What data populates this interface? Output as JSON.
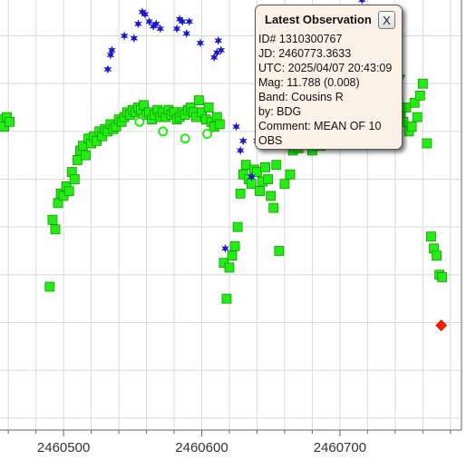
{
  "chart_data": {
    "type": "scatter",
    "x_ticks": [
      2460500,
      2460600,
      2460700
    ],
    "xlim": [
      2460454,
      2460788
    ],
    "ylim": [
      13.15,
      11.35
    ],
    "y_inverted": true,
    "grid": true,
    "colors": {
      "green_square": "#22ee11",
      "green_square_edge": "#119900",
      "blue_star": "#1a1ad0",
      "red_diamond": "#ff1a00",
      "grid": "#d9d9d9"
    },
    "series": [
      {
        "marker": "green-square",
        "points": [
          [
            2460455,
            12.65
          ],
          [
            2460457,
            12.62
          ],
          [
            2460459,
            12.66
          ],
          [
            2460461,
            12.64
          ],
          [
            2460490,
            11.95
          ],
          [
            2460492,
            12.23
          ],
          [
            2460494,
            12.19
          ],
          [
            2460496,
            12.3
          ],
          [
            2460498,
            12.34
          ],
          [
            2460500,
            12.33
          ],
          [
            2460502,
            12.37
          ],
          [
            2460504,
            12.35
          ],
          [
            2460506,
            12.43
          ],
          [
            2460508,
            12.4
          ],
          [
            2460510,
            12.48
          ],
          [
            2460512,
            12.52
          ],
          [
            2460514,
            12.54
          ],
          [
            2460516,
            12.5
          ],
          [
            2460518,
            12.57
          ],
          [
            2460520,
            12.55
          ],
          [
            2460522,
            12.58
          ],
          [
            2460524,
            12.56
          ],
          [
            2460526,
            12.6
          ],
          [
            2460528,
            12.58
          ],
          [
            2460530,
            12.61
          ],
          [
            2460532,
            12.6
          ],
          [
            2460534,
            12.63
          ],
          [
            2460536,
            12.61
          ],
          [
            2460538,
            12.62
          ],
          [
            2460540,
            12.65
          ],
          [
            2460542,
            12.64
          ],
          [
            2460544,
            12.66
          ],
          [
            2460546,
            12.68
          ],
          [
            2460548,
            12.67
          ],
          [
            2460550,
            12.69
          ],
          [
            2460552,
            12.68
          ],
          [
            2460554,
            12.7
          ],
          [
            2460556,
            12.69
          ],
          [
            2460558,
            12.71
          ],
          [
            2460560,
            12.67
          ],
          [
            2460562,
            12.68
          ],
          [
            2460564,
            12.65
          ],
          [
            2460566,
            12.67
          ],
          [
            2460568,
            12.69
          ],
          [
            2460570,
            12.66
          ],
          [
            2460572,
            12.68
          ],
          [
            2460574,
            12.66
          ],
          [
            2460576,
            12.69
          ],
          [
            2460578,
            12.67
          ],
          [
            2460580,
            12.68
          ],
          [
            2460582,
            12.65
          ],
          [
            2460584,
            12.66
          ],
          [
            2460586,
            12.68
          ],
          [
            2460588,
            12.67
          ],
          [
            2460590,
            12.69
          ],
          [
            2460592,
            12.7
          ],
          [
            2460594,
            12.68
          ],
          [
            2460596,
            12.66
          ],
          [
            2460598,
            12.73
          ],
          [
            2460600,
            12.68
          ],
          [
            2460603,
            12.65
          ],
          [
            2460605,
            12.7
          ],
          [
            2460607,
            12.64
          ],
          [
            2460609,
            12.62
          ],
          [
            2460611,
            12.66
          ],
          [
            2460613,
            12.63
          ],
          [
            2460616,
            12.05
          ],
          [
            2460618,
            11.9
          ],
          [
            2460620,
            12.03
          ],
          [
            2460622,
            12.08
          ],
          [
            2460624,
            12.12
          ],
          [
            2460626,
            12.2
          ],
          [
            2460628,
            12.34
          ],
          [
            2460630,
            12.42
          ],
          [
            2460632,
            12.46
          ],
          [
            2460634,
            12.4
          ],
          [
            2460636,
            12.38
          ],
          [
            2460638,
            12.44
          ],
          [
            2460640,
            12.43
          ],
          [
            2460642,
            12.35
          ],
          [
            2460644,
            12.39
          ],
          [
            2460646,
            12.45
          ],
          [
            2460648,
            12.4
          ],
          [
            2460650,
            12.33
          ],
          [
            2460652,
            12.28
          ],
          [
            2460654,
            12.46
          ],
          [
            2460656,
            12.1
          ],
          [
            2460660,
            12.38
          ],
          [
            2460664,
            12.42
          ],
          [
            2460666,
            12.52
          ],
          [
            2460668,
            12.56
          ],
          [
            2460670,
            12.53
          ],
          [
            2460672,
            12.58
          ],
          [
            2460674,
            12.55
          ],
          [
            2460676,
            12.6
          ],
          [
            2460678,
            12.57
          ],
          [
            2460680,
            12.52
          ],
          [
            2460682,
            12.6
          ],
          [
            2460684,
            12.58
          ],
          [
            2460686,
            12.54
          ],
          [
            2460688,
            12.62
          ],
          [
            2460690,
            12.63
          ],
          [
            2460692,
            12.61
          ],
          [
            2460694,
            12.64
          ],
          [
            2460696,
            12.66
          ],
          [
            2460698,
            12.63
          ],
          [
            2460700,
            12.65
          ],
          [
            2460702,
            12.68
          ],
          [
            2460704,
            12.66
          ],
          [
            2460706,
            12.7
          ],
          [
            2460708,
            12.67
          ],
          [
            2460710,
            12.69
          ],
          [
            2460712,
            12.66
          ],
          [
            2460714,
            12.68
          ],
          [
            2460716,
            12.7
          ],
          [
            2460718,
            12.65
          ],
          [
            2460720,
            12.69
          ],
          [
            2460722,
            12.72
          ],
          [
            2460724,
            12.68
          ],
          [
            2460726,
            12.7
          ],
          [
            2460728,
            12.66
          ],
          [
            2460730,
            12.7
          ],
          [
            2460732,
            12.67
          ],
          [
            2460734,
            12.69
          ],
          [
            2460736,
            12.71
          ],
          [
            2460738,
            12.68
          ],
          [
            2460740,
            12.7
          ],
          [
            2460742,
            12.72
          ],
          [
            2460744,
            12.67
          ],
          [
            2460746,
            12.64
          ],
          [
            2460748,
            12.7
          ],
          [
            2460750,
            12.6
          ],
          [
            2460752,
            12.62
          ],
          [
            2460754,
            12.72
          ],
          [
            2460756,
            12.66
          ],
          [
            2460758,
            12.75
          ],
          [
            2460760,
            12.8
          ],
          [
            2460763,
            12.55
          ],
          [
            2460766,
            12.16
          ],
          [
            2460768,
            12.11
          ],
          [
            2460770,
            12.08
          ],
          [
            2460772,
            12.0
          ],
          [
            2460774,
            11.99
          ]
        ]
      },
      {
        "marker": "green-open-circle",
        "points": [
          [
            2460555,
            12.64
          ],
          [
            2460572,
            12.6
          ],
          [
            2460588,
            12.57
          ],
          [
            2460604,
            12.59
          ]
        ]
      },
      {
        "marker": "green-triangle-down",
        "points": [
          [
            2460744,
            12.82
          ]
        ]
      },
      {
        "marker": "blue-star",
        "points": [
          [
            2460532,
            12.86
          ],
          [
            2460534,
            12.92
          ],
          [
            2460535,
            12.94
          ],
          [
            2460544,
            13.0
          ],
          [
            2460551,
            12.99
          ],
          [
            2460554,
            13.05
          ],
          [
            2460557,
            13.1
          ],
          [
            2460559,
            13.09
          ],
          [
            2460562,
            13.06
          ],
          [
            2460565,
            13.04
          ],
          [
            2460567,
            13.05
          ],
          [
            2460570,
            13.03
          ],
          [
            2460582,
            13.03
          ],
          [
            2460584,
            13.07
          ],
          [
            2460586,
            13.06
          ],
          [
            2460589,
            13.01
          ],
          [
            2460591,
            13.06
          ],
          [
            2460599,
            12.97
          ],
          [
            2460609,
            12.91
          ],
          [
            2460611,
            12.93
          ],
          [
            2460612,
            12.98
          ],
          [
            2460614,
            12.94
          ],
          [
            2460617,
            12.11
          ],
          [
            2460625,
            12.62
          ],
          [
            2460628,
            12.52
          ],
          [
            2460630,
            12.56
          ],
          [
            2460636,
            12.41
          ],
          [
            2460640,
            12.56
          ],
          [
            2460641,
            12.59
          ],
          [
            2460642,
            12.64
          ],
          [
            2460644,
            12.67
          ],
          [
            2460645,
            12.72
          ],
          [
            2460646,
            12.76
          ],
          [
            2460654,
            12.72
          ],
          [
            2460673,
            12.85
          ],
          [
            2460688,
            12.95
          ],
          [
            2460697,
            13.02
          ],
          [
            2460698,
            13.04
          ],
          [
            2460700,
            13.05
          ],
          [
            2460702,
            12.98
          ],
          [
            2460703,
            13.03
          ],
          [
            2460716,
            13.15
          ]
        ]
      },
      {
        "marker": "red-diamond",
        "points": [
          [
            2460773.3633,
            11.788
          ]
        ]
      }
    ]
  },
  "popup": {
    "title": "Latest Observation",
    "close_label": "X",
    "lines": [
      "ID# 1310300767",
      "JD: 2460773.3633",
      "UTC: 2025/04/07 20:43:09",
      "Mag: 11.788 (0.008)",
      "Band: Cousins R",
      "by: BDG"
    ],
    "comment": "Comment: MEAN OF 10 OBS"
  }
}
